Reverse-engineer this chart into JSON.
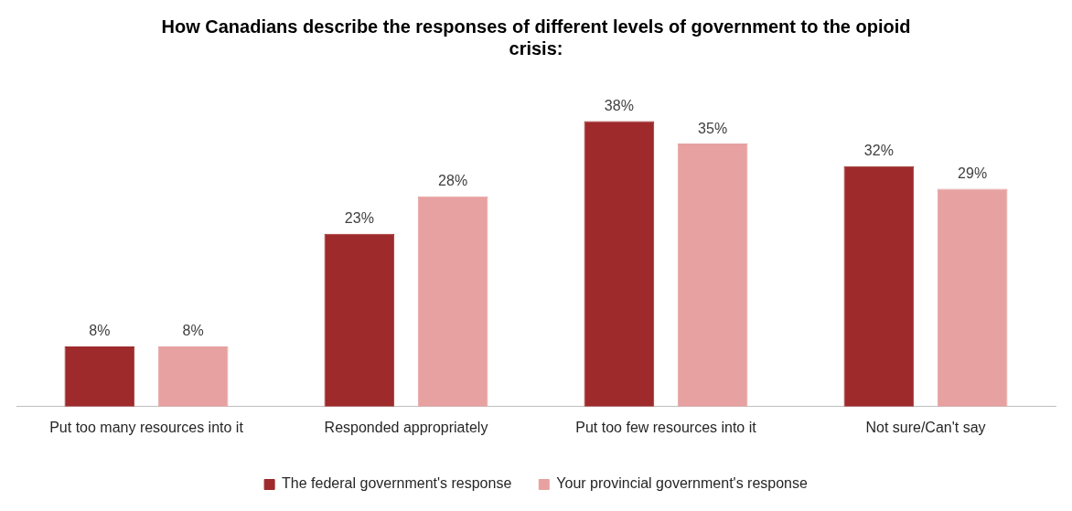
{
  "chart_data": {
    "type": "bar",
    "title": "How Canadians describe the responses of different levels of government to the opioid crisis:",
    "categories": [
      "Put too many resources into it",
      "Responded appropriately",
      "Put too few resources into it",
      "Not sure/Can't say"
    ],
    "series": [
      {
        "name": "The federal government's response",
        "color": "#9e2a2b",
        "values": [
          8,
          23,
          38,
          32
        ],
        "value_labels": [
          "8%",
          "23%",
          "38%",
          "32%"
        ]
      },
      {
        "name": "Your provincial government's response",
        "color": "#e6a1a0",
        "values": [
          8,
          28,
          35,
          29
        ],
        "value_labels": [
          "8%",
          "28%",
          "35%",
          "29%"
        ]
      }
    ],
    "legend": "bottom",
    "grid": false
  }
}
